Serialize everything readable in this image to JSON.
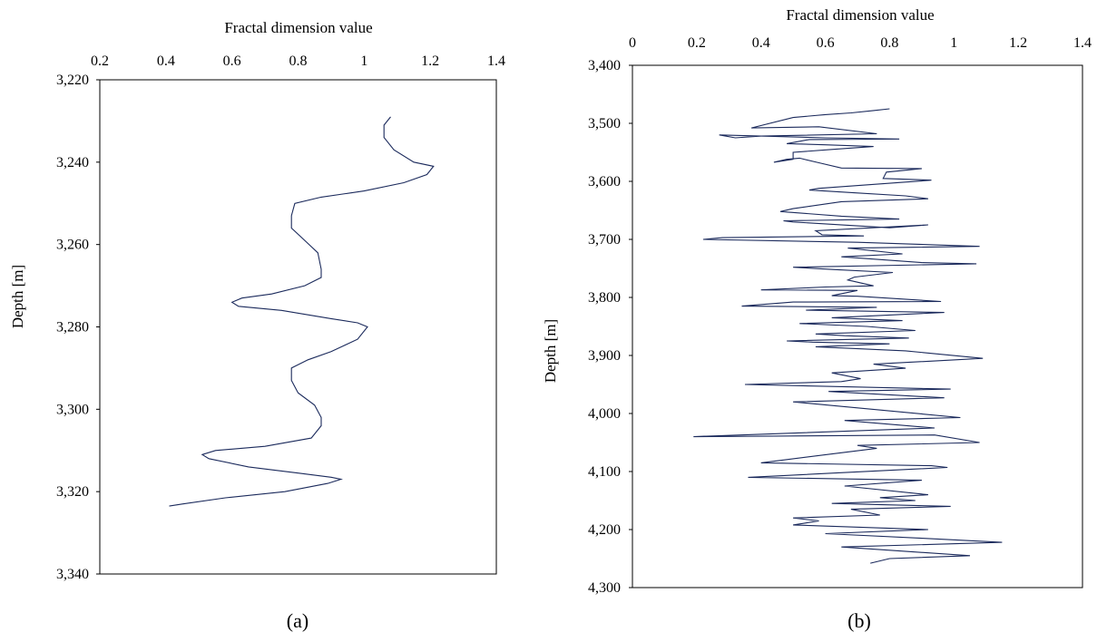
{
  "figure": {
    "panels": [
      "(a)",
      "(b)"
    ]
  },
  "chart_data": [
    {
      "type": "line",
      "panel": "(a)",
      "title": "",
      "xlabel": "Fractal dimension value",
      "ylabel": "Depth [m]",
      "xlim": [
        0.2,
        1.4
      ],
      "ylim": [
        3220,
        3340
      ],
      "y_inverted": true,
      "x_axis_position": "top",
      "xticks": [
        "0.2",
        "0.4",
        "0.6",
        "0.8",
        "1",
        "1.2",
        "1.4"
      ],
      "yticks": [
        "3,220",
        "3,240",
        "3,260",
        "3,280",
        "3,300",
        "3,320",
        "3,340"
      ],
      "color": "#1b2a5c",
      "grid": false,
      "x": [
        1.08,
        1.06,
        1.06,
        1.09,
        1.15,
        1.21,
        1.19,
        1.12,
        1.0,
        0.87,
        0.79,
        0.78,
        0.78,
        0.82,
        0.86,
        0.87,
        0.87,
        0.82,
        0.72,
        0.63,
        0.6,
        0.62,
        0.75,
        0.9,
        0.98,
        1.01,
        0.98,
        0.9,
        0.83,
        0.78,
        0.78,
        0.8,
        0.85,
        0.87,
        0.87,
        0.84,
        0.7,
        0.55,
        0.51,
        0.53,
        0.65,
        0.8,
        0.9,
        0.93,
        0.89,
        0.76,
        0.58,
        0.45,
        0.41
      ],
      "y": [
        3229,
        3231,
        3234,
        3237,
        3240,
        3241,
        3243,
        3245,
        3247,
        3248.5,
        3250,
        3253,
        3256,
        3259,
        3262,
        3266,
        3268,
        3270,
        3272,
        3273,
        3274,
        3275,
        3276,
        3278,
        3279,
        3280,
        3283,
        3286,
        3288,
        3290,
        3293,
        3296,
        3299,
        3302,
        3304,
        3307,
        3309,
        3310,
        3311,
        3312,
        3314,
        3315.5,
        3316.5,
        3317,
        3318,
        3320,
        3321.5,
        3323,
        3323.5
      ]
    },
    {
      "type": "line",
      "panel": "(b)",
      "title": "",
      "xlabel": "Fractal dimension value",
      "ylabel": "Depth [m]",
      "xlim": [
        0,
        1.4
      ],
      "ylim": [
        3400,
        4300
      ],
      "y_inverted": true,
      "x_axis_position": "top",
      "xticks": [
        "0",
        "0.2",
        "0.4",
        "0.6",
        "0.8",
        "1",
        "1.2",
        "1.4"
      ],
      "yticks": [
        "3,400",
        "3,500",
        "3,600",
        "3,700",
        "3,800",
        "3,900",
        "4,000",
        "4,100",
        "4,200",
        "4,300"
      ],
      "color": "#1b2a5c",
      "grid": false,
      "x": [
        0.8,
        0.75,
        0.68,
        0.6,
        0.5,
        0.37,
        0.58,
        0.76,
        0.4,
        0.32,
        0.27,
        0.6,
        0.83,
        0.55,
        0.48,
        0.6,
        0.75,
        0.62,
        0.5,
        0.5,
        0.44,
        0.48,
        0.52,
        0.58,
        0.65,
        0.9,
        0.79,
        0.78,
        0.93,
        0.58,
        0.55,
        0.7,
        0.85,
        0.92,
        0.65,
        0.5,
        0.46,
        0.65,
        0.83,
        0.47,
        0.5,
        0.8,
        0.92,
        0.57,
        0.59,
        0.72,
        0.28,
        0.22,
        0.7,
        1.08,
        0.67,
        0.84,
        0.65,
        0.9,
        1.07,
        0.5,
        0.63,
        0.81,
        0.69,
        0.67,
        0.75,
        0.6,
        0.4,
        0.7,
        0.62,
        0.7,
        0.96,
        0.5,
        0.34,
        0.76,
        0.54,
        0.97,
        0.62,
        0.84,
        0.52,
        0.73,
        0.88,
        0.57,
        0.66,
        0.86,
        0.48,
        0.56,
        0.8,
        0.57,
        0.85,
        1.09,
        0.75,
        0.85,
        0.62,
        0.71,
        0.65,
        0.35,
        0.99,
        0.61,
        0.97,
        0.5,
        1.02,
        0.66,
        0.94,
        0.19,
        0.94,
        1.08,
        0.7,
        0.76,
        0.4,
        0.93,
        0.98,
        0.36,
        0.9,
        0.66,
        0.92,
        0.77,
        0.88,
        0.62,
        0.99,
        0.68,
        0.77,
        0.5,
        0.58,
        0.5,
        0.92,
        0.6,
        0.9,
        1.15,
        0.65,
        1.05,
        0.8,
        0.74
      ],
      "y": [
        3475,
        3478,
        3482,
        3485,
        3490,
        3508,
        3506,
        3518,
        3522,
        3525,
        3520,
        3525,
        3527,
        3528,
        3535,
        3537,
        3540,
        3545,
        3550,
        3562,
        3567,
        3562,
        3560,
        3568,
        3577,
        3578,
        3584,
        3595,
        3598,
        3612,
        3615,
        3620,
        3625,
        3630,
        3635,
        3647,
        3652,
        3660,
        3665,
        3668,
        3670,
        3680,
        3675,
        3685,
        3692,
        3694,
        3697,
        3700,
        3705,
        3712,
        3715,
        3725,
        3730,
        3740,
        3742,
        3748,
        3752,
        3757,
        3765,
        3770,
        3780,
        3782,
        3787,
        3788,
        3797,
        3798,
        3807,
        3808,
        3815,
        3817,
        3822,
        3826,
        3835,
        3840,
        3845,
        3850,
        3857,
        3863,
        3866,
        3870,
        3875,
        3877,
        3880,
        3885,
        3892,
        3905,
        3915,
        3922,
        3930,
        3940,
        3945,
        3950,
        3958,
        3962,
        3973,
        3980,
        4007,
        4012,
        4025,
        4040,
        4037,
        4050,
        4055,
        4060,
        4085,
        4090,
        4093,
        4110,
        4115,
        4125,
        4140,
        4145,
        4150,
        4155,
        4160,
        4165,
        4175,
        4180,
        4185,
        4192,
        4200,
        4207,
        4215,
        4222,
        4230,
        4245,
        4250,
        4258
      ]
    }
  ]
}
